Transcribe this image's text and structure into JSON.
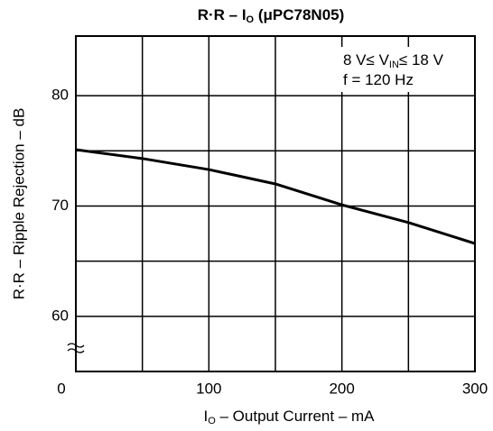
{
  "chart_data": {
    "type": "line",
    "title": [
      "R·R – I",
      "O",
      " (μPC78N05)"
    ],
    "x_label": [
      "I",
      "O",
      " – Output Current – mA"
    ],
    "y_label": "R·R – Ripple Rejection – dB",
    "annotations": [
      [
        "8 V≤ V",
        "IN",
        "≤ 18 V"
      ],
      [
        "f = 120 Hz"
      ]
    ],
    "x": [
      0,
      50,
      100,
      150,
      200,
      250,
      300
    ],
    "series": [
      {
        "color": "#000000",
        "values": [
          75.1,
          74.3,
          73.3,
          72.0,
          70.1,
          68.5,
          66.6
        ]
      }
    ],
    "xlim": [
      0,
      300
    ],
    "xticks": [
      0,
      100,
      200,
      300
    ],
    "xgrid": [
      50,
      150,
      250
    ],
    "ylim": [
      55,
      85.4
    ],
    "yticks": [
      60,
      70,
      80
    ],
    "ygrid": [
      65,
      75
    ],
    "grid": true
  }
}
